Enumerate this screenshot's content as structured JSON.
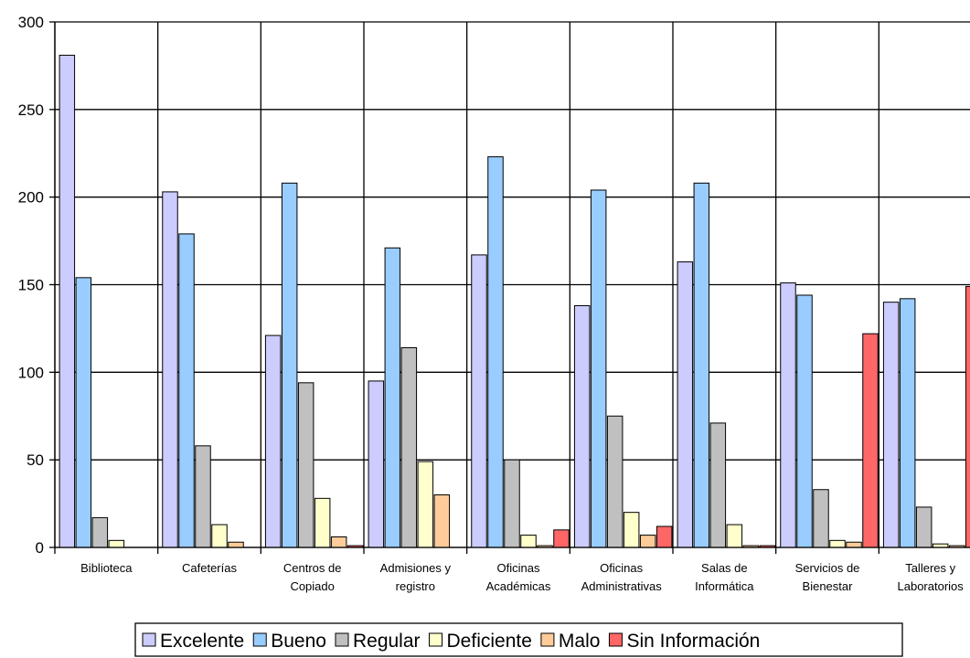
{
  "chart_data": {
    "type": "bar",
    "categories": [
      [
        "Biblioteca"
      ],
      [
        "Cafeterías"
      ],
      [
        "Centros de",
        "Copiado"
      ],
      [
        "Admisiones y",
        "registro"
      ],
      [
        "Oficinas",
        "Académicas"
      ],
      [
        "Oficinas",
        "Administrativas"
      ],
      [
        "Salas de",
        "Informática"
      ],
      [
        "Servicios de",
        "Bienestar"
      ],
      [
        "Talleres y",
        "Laboratorios"
      ]
    ],
    "series": [
      {
        "name": "Excelente",
        "color": "#ccccff",
        "values": [
          281,
          203,
          121,
          95,
          167,
          138,
          163,
          151,
          140
        ]
      },
      {
        "name": "Bueno",
        "color": "#99ccff",
        "values": [
          154,
          179,
          208,
          171,
          223,
          204,
          208,
          144,
          142
        ]
      },
      {
        "name": "Regular",
        "color": "#c0c0c0",
        "values": [
          17,
          58,
          94,
          114,
          50,
          75,
          71,
          33,
          23
        ]
      },
      {
        "name": "Deficiente",
        "color": "#ffffcc",
        "values": [
          4,
          13,
          28,
          49,
          7,
          20,
          13,
          4,
          2
        ]
      },
      {
        "name": "Malo",
        "color": "#ffcc99",
        "values": [
          0,
          3,
          6,
          30,
          1,
          7,
          1,
          3,
          1
        ]
      },
      {
        "name": "Sin Información",
        "color": "#ff6666",
        "values": [
          0,
          0,
          1,
          0,
          10,
          12,
          1,
          122,
          149
        ]
      }
    ],
    "yticks": [
      "0",
      "50",
      "100",
      "150",
      "200",
      "250",
      "300"
    ],
    "ylim": [
      0,
      300
    ],
    "grid": true,
    "legend_position": "bottom"
  }
}
